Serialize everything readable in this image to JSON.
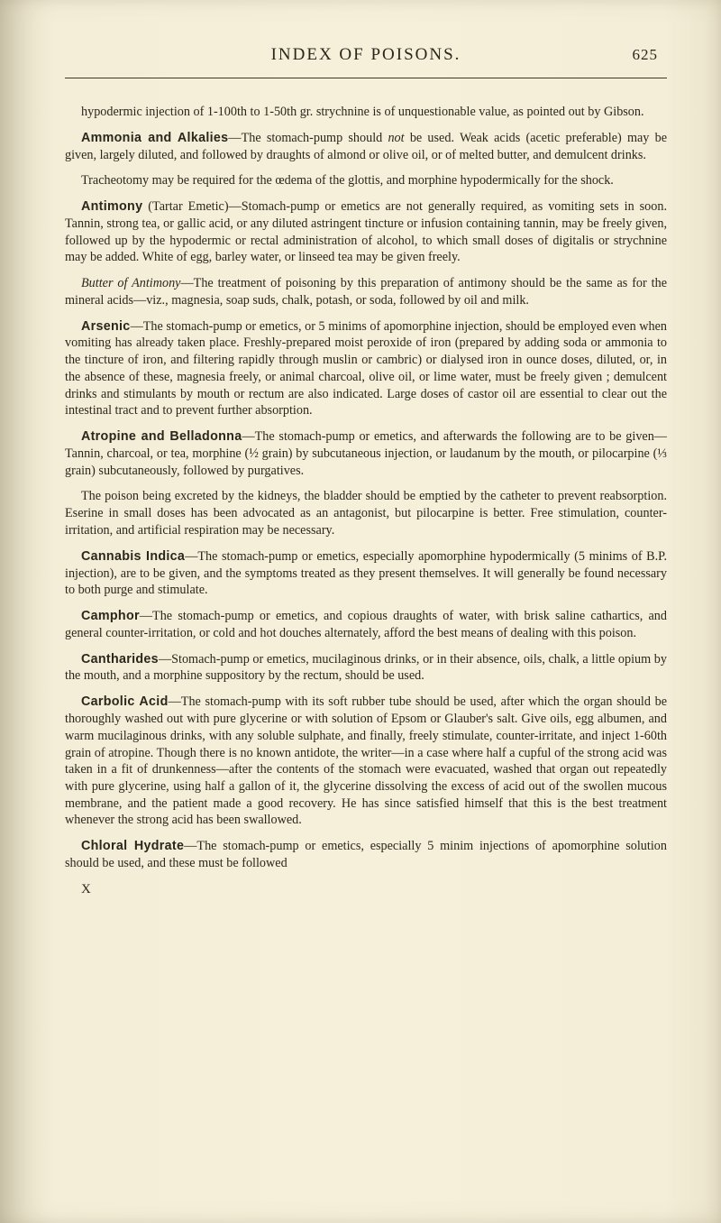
{
  "header": {
    "title": "INDEX OF POISONS.",
    "page_number": "625"
  },
  "intro": "hypodermic injection of 1-100th to 1-50th gr. strychnine is of unquestionable value, as pointed out by Gibson.",
  "entries": [
    {
      "head": "Ammonia and Alkalies",
      "paras": [
        "—The stomach-pump should <em>not</em> be used. Weak acids (acetic preferable) may be given, largely diluted, and followed by draughts of almond or olive oil, or of melted butter, and demulcent drinks.",
        "Tracheotomy may be required for the œdema of the glottis, and morphine hypodermically for the shock."
      ]
    },
    {
      "head": "Antimony",
      "paras": [
        " (Tartar Emetic)—Stomach-pump or emetics are not generally required, as vomiting sets in soon. Tannin, strong tea, or gallic acid, or any diluted astringent tincture or infusion containing tannin, may be freely given, followed up by the hypodermic or rectal administration of alcohol, to which small doses of digitalis or strychnine may be added. White of egg, barley water, or linseed tea may be given freely.",
        "<em>Butter of Antimony</em>—The treatment of poisoning by this preparation of antimony should be the same as for the mineral acids—viz., magnesia, soap suds, chalk, potash, or soda, followed by oil and milk."
      ]
    },
    {
      "head": "Arsenic",
      "paras": [
        "—The stomach-pump or emetics, or 5 minims of apomorphine injection, should be employed even when vomiting has already taken place. Freshly-prepared moist peroxide of iron (prepared by adding soda or ammonia to the tincture of iron, and filtering rapidly through muslin or cambric) or dialysed iron in ounce doses, diluted, or, in the absence of these, magnesia freely, or animal charcoal, olive oil, or lime water, must be freely given ; demulcent drinks and stimulants by mouth or rectum are also indicated. Large doses of castor oil are essential to clear out the intestinal tract and to prevent further absorption."
      ]
    },
    {
      "head": "Atropine and Belladonna",
      "paras": [
        "—The stomach-pump or emetics, and afterwards the following are to be given—Tannin, charcoal, or tea, morphine (½ grain) by subcutaneous injection, or laudanum by the mouth, or pilocarpine (⅓ grain) subcutaneously, followed by purgatives.",
        "The poison being excreted by the kidneys, the bladder should be emptied by the catheter to prevent reabsorption. Eserine in small doses has been advocated as an antagonist, but pilocarpine is better. Free stimulation, counter-irritation, and artificial respiration may be necessary."
      ]
    },
    {
      "head": "Cannabis Indica",
      "paras": [
        "—The stomach-pump or emetics, especially apomorphine hypodermically (5 minims of B.P. injection), are to be given, and the symptoms treated as they present themselves. It will generally be found necessary to both purge and stimulate."
      ]
    },
    {
      "head": "Camphor",
      "paras": [
        "—The stomach-pump or emetics, and copious draughts of water, with brisk saline cathartics, and general counter-irritation, or cold and hot douches alternately, afford the best means of dealing with this poison."
      ]
    },
    {
      "head": "Cantharides",
      "paras": [
        "—Stomach-pump or emetics, mucilaginous drinks, or in their absence, oils, chalk, a little opium by the mouth, and a morphine suppository by the rectum, should be used."
      ]
    },
    {
      "head": "Carbolic Acid",
      "paras": [
        "—The stomach-pump with its soft rubber tube should be used, after which the organ should be thoroughly washed out with pure glycerine or with solution of Epsom or Glauber's salt. Give oils, egg albumen, and warm mucilaginous drinks, with any soluble sulphate, and finally, freely stimulate, counter-irritate, and inject 1-60th grain of atropine. Though there is no known antidote, the writer—in a case where half a cupful of the strong acid was taken in a fit of drunkenness—after the contents of the stomach were evacuated, washed that organ out repeatedly with pure glycerine, using half a gallon of it, the glycerine dissolving the excess of acid out of the swollen mucous membrane, and the patient made a good recovery. He has since satisfied himself that this is the best treatment whenever the strong acid has been swallowed."
      ]
    },
    {
      "head": "Chloral Hydrate",
      "paras": [
        "—The stomach-pump or emetics, especially 5 minim injections of apomorphine solution should be used, and these must be followed"
      ]
    }
  ],
  "signature": "X"
}
